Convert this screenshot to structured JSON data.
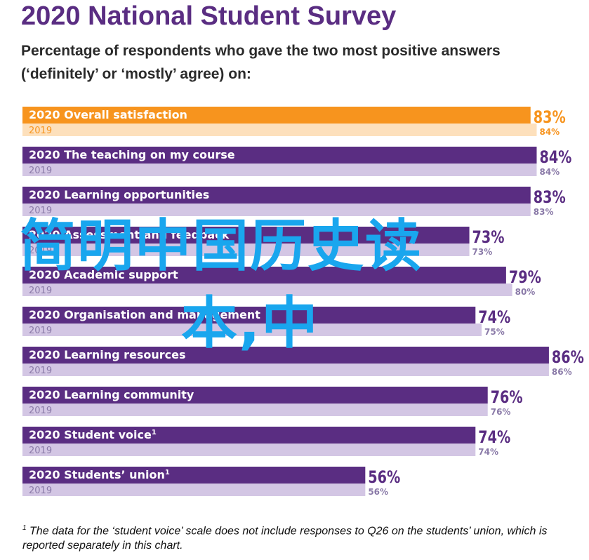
{
  "header": {
    "title": "2020 National Student Survey",
    "subtitle": "Percentage of respondents who gave the two most positive answers (‘definitely’ or ‘mostly’ agree) on:"
  },
  "colors": {
    "highlight_2020": "#f7941e",
    "highlight_2019": "#fde0bc",
    "bar_2020": "#5a2d82",
    "bar_2019": "#d3c6e4",
    "label_2019": "#8a7aa8",
    "value_text": "#5a2d82",
    "highlight_value_text": "#f7941e",
    "overlay_text": "#19a6ee"
  },
  "chart_data": {
    "type": "bar",
    "orientation": "horizontal",
    "xlim": [
      0,
      100
    ],
    "categories": [
      "Overall satisfaction",
      "The teaching on my course",
      "Learning opportunities",
      "Assessment and feedback",
      "Academic support",
      "Organisation and management",
      "Learning resources",
      "Learning community",
      "Student voice",
      "Students’ union"
    ],
    "display_labels": [
      "Overall satisfaction",
      "The teaching on my course",
      "Learning opportunities",
      "Assessment and feedback",
      "Academic support",
      "Organisation and management",
      "Learning resources",
      "Learning community",
      "Student voice",
      "Students’ union"
    ],
    "footnote_marks": [
      "",
      "",
      "",
      "",
      "",
      "",
      "",
      "",
      "1",
      "1"
    ],
    "series": [
      {
        "name": "2020",
        "values": [
          83,
          84,
          83,
          73,
          79,
          74,
          86,
          76,
          74,
          56
        ]
      },
      {
        "name": "2019",
        "values": [
          84,
          84,
          83,
          73,
          80,
          75,
          86,
          76,
          74,
          56
        ]
      }
    ],
    "value_labels_2020": [
      "83%",
      "84%",
      "83%",
      "73%",
      "79%",
      "74%",
      "86%",
      "76%",
      "74%",
      "56%"
    ],
    "value_labels_2019": [
      "84%",
      "84%",
      "83%",
      "73%",
      "80%",
      "75%",
      "86%",
      "76%",
      "74%",
      "56%"
    ],
    "year_2020": "2020",
    "year_2019": "2019",
    "highlight_index": 0
  },
  "footnote": {
    "mark": "1",
    "text": "The data for the ‘student voice’ scale does not include responses to Q26 on the students’ union, which is reported separately in this chart."
  },
  "overlay": {
    "line1": "简明中国历史读",
    "line2": "本,中"
  }
}
